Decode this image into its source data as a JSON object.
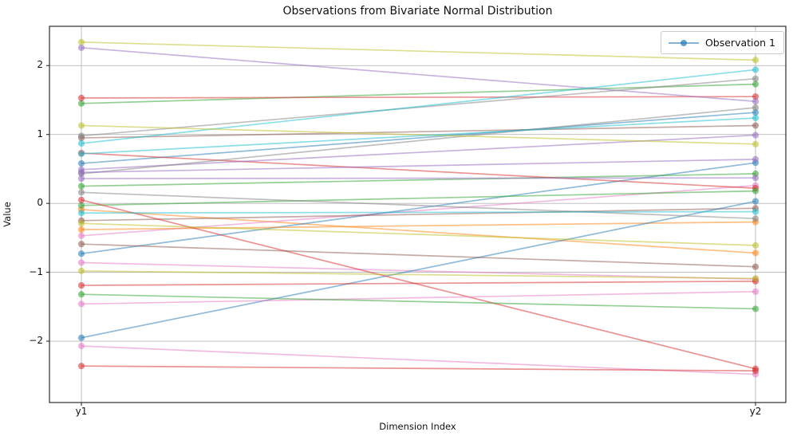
{
  "title": "Observations from Bivariate Normal Distribution",
  "chart_data": {
    "type": "line",
    "subtype": "parallel-coordinates",
    "categories": [
      "y1",
      "y2"
    ],
    "xlabel": "Dimension Index",
    "ylabel": "Value",
    "yticks": [
      2,
      1,
      0,
      -1,
      -2
    ],
    "ytick_labels": [
      "2",
      "1",
      "0",
      "−1",
      "−2"
    ],
    "ylim": [
      -2.89,
      2.57
    ],
    "grid": true,
    "line_alpha": 0.5,
    "legend": {
      "position": "upper right",
      "entries": [
        {
          "label": "Observation 1",
          "color": "#1f77b4"
        }
      ]
    },
    "palette": {
      "blue": "#1f77b4",
      "orange": "#ff7f0e",
      "green": "#2ca02c",
      "red": "#d62728",
      "purple": "#9467bd",
      "brown": "#8c564b",
      "pink": "#e377c2",
      "gray": "#7f7f7f",
      "olive": "#bcbd22",
      "cyan": "#17becf"
    },
    "series": [
      {
        "color": "blue",
        "values": [
          0.58,
          1.32
        ]
      },
      {
        "color": "orange",
        "values": [
          -0.09,
          -0.72
        ]
      },
      {
        "color": "green",
        "values": [
          1.45,
          1.73
        ]
      },
      {
        "color": "red",
        "values": [
          1.53,
          1.55
        ]
      },
      {
        "color": "purple",
        "values": [
          2.26,
          1.48
        ]
      },
      {
        "color": "brown",
        "values": [
          0.95,
          1.13
        ]
      },
      {
        "color": "pink",
        "values": [
          -0.47,
          0.26
        ]
      },
      {
        "color": "gray",
        "values": [
          0.98,
          1.81
        ]
      },
      {
        "color": "olive",
        "values": [
          2.34,
          2.08
        ]
      },
      {
        "color": "cyan",
        "values": [
          0.87,
          1.94
        ]
      },
      {
        "color": "blue",
        "values": [
          -0.73,
          0.59
        ]
      },
      {
        "color": "orange",
        "values": [
          -0.38,
          -0.27
        ]
      },
      {
        "color": "green",
        "values": [
          0.25,
          0.43
        ]
      },
      {
        "color": "red",
        "values": [
          0.73,
          0.22
        ]
      },
      {
        "color": "purple",
        "values": [
          0.49,
          0.99
        ]
      },
      {
        "color": "brown",
        "values": [
          -0.25,
          -0.07
        ]
      },
      {
        "color": "pink",
        "values": [
          -0.86,
          -1.1
        ]
      },
      {
        "color": "gray",
        "values": [
          0.43,
          1.39
        ]
      },
      {
        "color": "olive",
        "values": [
          1.13,
          0.86
        ]
      },
      {
        "color": "cyan",
        "values": [
          0.72,
          1.24
        ]
      },
      {
        "color": "blue",
        "values": [
          -1.95,
          0.03
        ]
      },
      {
        "color": "green",
        "values": [
          -0.03,
          0.18
        ]
      },
      {
        "color": "red",
        "values": [
          0.05,
          -2.4
        ]
      },
      {
        "color": "purple",
        "values": [
          0.45,
          0.64
        ]
      },
      {
        "color": "brown",
        "values": [
          -0.59,
          -0.92
        ]
      },
      {
        "color": "pink",
        "values": [
          -1.46,
          -1.28
        ]
      },
      {
        "color": "gray",
        "values": [
          0.16,
          -0.22
        ]
      },
      {
        "color": "olive",
        "values": [
          -0.29,
          -0.61
        ]
      },
      {
        "color": "cyan",
        "values": [
          -0.14,
          -0.12
        ]
      },
      {
        "color": "green",
        "values": [
          -1.32,
          -1.53
        ]
      },
      {
        "color": "red",
        "values": [
          -1.19,
          -1.13
        ]
      },
      {
        "color": "purple",
        "values": [
          0.36,
          0.37
        ]
      },
      {
        "color": "pink",
        "values": [
          -2.07,
          -2.48
        ]
      },
      {
        "color": "olive",
        "values": [
          -0.98,
          -1.09
        ]
      },
      {
        "color": "red",
        "values": [
          -2.36,
          -2.43
        ]
      }
    ]
  }
}
